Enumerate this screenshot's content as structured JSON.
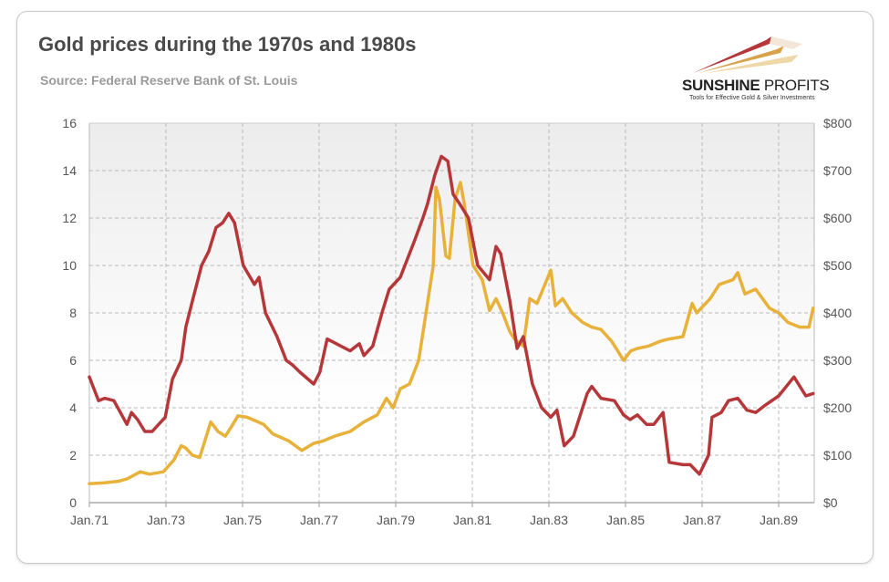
{
  "header": {
    "title": "Gold prices during the 1970s and 1980s",
    "subtitle": "Source: Federal Reserve Bank of St. Louis"
  },
  "logo": {
    "name_bold": "SUNSHINE",
    "name_light": "PROFITS",
    "tagline": "Tools for Effective Gold & Silver Investments"
  },
  "chart_data": {
    "type": "line",
    "title": "Gold prices during the 1970s and 1980s",
    "xlabel": "",
    "ylabel_left": "",
    "ylabel_right": "",
    "xlim": [
      1971.0,
      1989.9
    ],
    "ylim_left": [
      0,
      16
    ],
    "ylim_right": [
      0,
      800
    ],
    "grid": true,
    "x_ticks": [
      {
        "x": 1971,
        "label": "Jan.71"
      },
      {
        "x": 1973,
        "label": "Jan.73"
      },
      {
        "x": 1975,
        "label": "Jan.75"
      },
      {
        "x": 1977,
        "label": "Jan.77"
      },
      {
        "x": 1979,
        "label": "Jan.79"
      },
      {
        "x": 1981,
        "label": "Jan.81"
      },
      {
        "x": 1983,
        "label": "Jan.83"
      },
      {
        "x": 1985,
        "label": "Jan.85"
      },
      {
        "x": 1987,
        "label": "Jan.87"
      },
      {
        "x": 1989,
        "label": "Jan.89"
      }
    ],
    "y_ticks_left": [
      "0",
      "2",
      "4",
      "6",
      "8",
      "10",
      "12",
      "14",
      "16"
    ],
    "y_ticks_right": [
      "$0",
      "$100",
      "$200",
      "$300",
      "$400",
      "$500",
      "$600",
      "$700",
      "$800"
    ],
    "series": [
      {
        "name": "Left-axis series",
        "axis": "left",
        "color": "#b5373a",
        "points": [
          [
            1971.0,
            5.3
          ],
          [
            1971.24,
            4.3
          ],
          [
            1971.4,
            4.4
          ],
          [
            1971.64,
            4.3
          ],
          [
            1971.98,
            3.3
          ],
          [
            1972.1,
            3.8
          ],
          [
            1972.26,
            3.5
          ],
          [
            1972.45,
            3.0
          ],
          [
            1972.64,
            3.0
          ],
          [
            1972.81,
            3.3
          ],
          [
            1972.98,
            3.6
          ],
          [
            1973.17,
            5.2
          ],
          [
            1973.4,
            6.0
          ],
          [
            1973.52,
            7.4
          ],
          [
            1973.69,
            8.5
          ],
          [
            1973.93,
            10.0
          ],
          [
            1974.12,
            10.6
          ],
          [
            1974.31,
            11.6
          ],
          [
            1974.48,
            11.8
          ],
          [
            1974.64,
            12.2
          ],
          [
            1974.79,
            11.8
          ],
          [
            1975.02,
            10.0
          ],
          [
            1975.31,
            9.2
          ],
          [
            1975.43,
            9.5
          ],
          [
            1975.6,
            8.0
          ],
          [
            1975.9,
            7.0
          ],
          [
            1976.14,
            6.0
          ],
          [
            1976.31,
            5.8
          ],
          [
            1976.5,
            5.5
          ],
          [
            1976.86,
            5.0
          ],
          [
            1977.02,
            5.5
          ],
          [
            1977.21,
            6.9
          ],
          [
            1977.57,
            6.6
          ],
          [
            1977.81,
            6.4
          ],
          [
            1978.05,
            6.7
          ],
          [
            1978.17,
            6.2
          ],
          [
            1978.4,
            6.6
          ],
          [
            1978.64,
            8.0
          ],
          [
            1978.83,
            9.0
          ],
          [
            1979.12,
            9.5
          ],
          [
            1979.48,
            11.0
          ],
          [
            1979.71,
            12.0
          ],
          [
            1979.83,
            12.6
          ],
          [
            1980.02,
            13.8
          ],
          [
            1980.19,
            14.6
          ],
          [
            1980.36,
            14.4
          ],
          [
            1980.5,
            13.0
          ],
          [
            1980.67,
            12.6
          ],
          [
            1980.9,
            12.0
          ],
          [
            1981.14,
            10.0
          ],
          [
            1981.45,
            9.4
          ],
          [
            1981.62,
            10.8
          ],
          [
            1981.74,
            10.5
          ],
          [
            1981.98,
            8.5
          ],
          [
            1982.17,
            6.5
          ],
          [
            1982.33,
            7.0
          ],
          [
            1982.57,
            5.0
          ],
          [
            1982.81,
            4.0
          ],
          [
            1983.05,
            3.6
          ],
          [
            1983.21,
            3.9
          ],
          [
            1983.4,
            2.4
          ],
          [
            1983.64,
            2.8
          ],
          [
            1984.0,
            4.6
          ],
          [
            1984.12,
            4.9
          ],
          [
            1984.36,
            4.4
          ],
          [
            1984.71,
            4.3
          ],
          [
            1984.95,
            3.7
          ],
          [
            1985.12,
            3.5
          ],
          [
            1985.31,
            3.7
          ],
          [
            1985.55,
            3.3
          ],
          [
            1985.74,
            3.3
          ],
          [
            1985.98,
            3.8
          ],
          [
            1986.14,
            1.7
          ],
          [
            1986.5,
            1.6
          ],
          [
            1986.69,
            1.6
          ],
          [
            1986.93,
            1.2
          ],
          [
            1987.17,
            2.0
          ],
          [
            1987.26,
            3.6
          ],
          [
            1987.5,
            3.8
          ],
          [
            1987.69,
            4.3
          ],
          [
            1987.93,
            4.4
          ],
          [
            1988.17,
            3.9
          ],
          [
            1988.4,
            3.8
          ],
          [
            1988.64,
            4.1
          ],
          [
            1989.0,
            4.5
          ],
          [
            1989.4,
            5.3
          ],
          [
            1989.71,
            4.5
          ],
          [
            1989.9,
            4.6
          ]
        ]
      },
      {
        "name": "Gold price (USD)",
        "axis": "right",
        "color": "#e8b13a",
        "points": [
          [
            1971.0,
            40
          ],
          [
            1971.4,
            42
          ],
          [
            1971.76,
            45
          ],
          [
            1971.98,
            50
          ],
          [
            1972.33,
            65
          ],
          [
            1972.57,
            60
          ],
          [
            1972.93,
            65
          ],
          [
            1973.21,
            90
          ],
          [
            1973.4,
            120
          ],
          [
            1973.52,
            115
          ],
          [
            1973.69,
            100
          ],
          [
            1973.88,
            95
          ],
          [
            1974.17,
            170
          ],
          [
            1974.36,
            150
          ],
          [
            1974.55,
            140
          ],
          [
            1974.71,
            160
          ],
          [
            1974.88,
            183
          ],
          [
            1975.12,
            180
          ],
          [
            1975.55,
            165
          ],
          [
            1975.79,
            145
          ],
          [
            1976.21,
            130
          ],
          [
            1976.55,
            110
          ],
          [
            1976.86,
            125
          ],
          [
            1977.1,
            130
          ],
          [
            1977.4,
            140
          ],
          [
            1977.81,
            150
          ],
          [
            1978.17,
            170
          ],
          [
            1978.52,
            185
          ],
          [
            1978.76,
            220
          ],
          [
            1978.93,
            200
          ],
          [
            1979.12,
            240
          ],
          [
            1979.36,
            250
          ],
          [
            1979.6,
            300
          ],
          [
            1979.79,
            400
          ],
          [
            1979.98,
            500
          ],
          [
            1980.05,
            665
          ],
          [
            1980.14,
            640
          ],
          [
            1980.31,
            520
          ],
          [
            1980.4,
            515
          ],
          [
            1980.55,
            640
          ],
          [
            1980.69,
            675
          ],
          [
            1980.79,
            630
          ],
          [
            1981.02,
            500
          ],
          [
            1981.26,
            470
          ],
          [
            1981.45,
            405
          ],
          [
            1981.62,
            430
          ],
          [
            1981.79,
            400
          ],
          [
            1981.98,
            360
          ],
          [
            1982.1,
            345
          ],
          [
            1982.33,
            330
          ],
          [
            1982.5,
            430
          ],
          [
            1982.69,
            420
          ],
          [
            1983.05,
            490
          ],
          [
            1983.17,
            415
          ],
          [
            1983.36,
            430
          ],
          [
            1983.6,
            400
          ],
          [
            1983.88,
            380
          ],
          [
            1984.12,
            370
          ],
          [
            1984.36,
            365
          ],
          [
            1984.64,
            340
          ],
          [
            1984.95,
            300
          ],
          [
            1985.14,
            320
          ],
          [
            1985.31,
            325
          ],
          [
            1985.6,
            330
          ],
          [
            1985.9,
            340
          ],
          [
            1986.14,
            345
          ],
          [
            1986.5,
            350
          ],
          [
            1986.74,
            420
          ],
          [
            1986.86,
            400
          ],
          [
            1987.21,
            430
          ],
          [
            1987.45,
            460
          ],
          [
            1987.81,
            470
          ],
          [
            1987.93,
            485
          ],
          [
            1988.12,
            440
          ],
          [
            1988.4,
            450
          ],
          [
            1988.76,
            410
          ],
          [
            1989.0,
            400
          ],
          [
            1989.24,
            380
          ],
          [
            1989.55,
            370
          ],
          [
            1989.79,
            370
          ],
          [
            1989.9,
            410
          ]
        ]
      }
    ]
  }
}
